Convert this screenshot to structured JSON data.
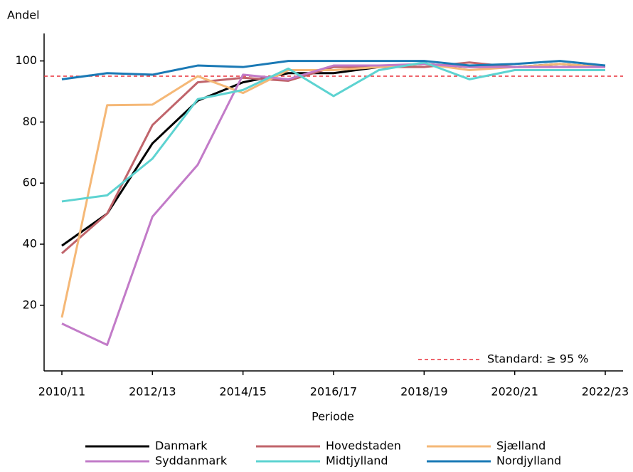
{
  "chart_data": {
    "type": "line",
    "y_label": "Andel",
    "x_label": "Periode",
    "categories": [
      "2010/11",
      null,
      "2012/13",
      null,
      "2014/15",
      null,
      "2016/17",
      null,
      "2018/19",
      null,
      "2020/21",
      null,
      "2022/23"
    ],
    "series": [
      {
        "name": "Danmark",
        "color": "#000000",
        "values": [
          39.5,
          50,
          73,
          87,
          93,
          96,
          96,
          98,
          99,
          98,
          98,
          99,
          98
        ]
      },
      {
        "name": "Hovedstaden",
        "color": "#c0646b",
        "values": [
          37,
          50,
          79,
          93,
          94.5,
          93.5,
          98,
          98,
          98,
          99.5,
          98,
          98,
          98
        ]
      },
      {
        "name": "Sjælland",
        "color": "#f5b877",
        "values": [
          16,
          85.5,
          85.7,
          95,
          89.5,
          97,
          97,
          98,
          99,
          97,
          98,
          99,
          98
        ]
      },
      {
        "name": "Syddanmark",
        "color": "#c27bc8",
        "values": [
          14,
          7,
          49,
          66,
          95.5,
          94,
          98.5,
          98.5,
          99,
          98,
          98,
          98,
          98
        ]
      },
      {
        "name": "Midtjylland",
        "color": "#5dd3d1",
        "values": [
          54,
          56,
          68,
          87.5,
          90.5,
          97.5,
          88.5,
          97,
          99.5,
          94,
          97,
          97,
          97
        ]
      },
      {
        "name": "Nordjylland",
        "color": "#1a79b5",
        "values": [
          94,
          96,
          95.5,
          98.5,
          98,
          100,
          100,
          100,
          100,
          98.5,
          99,
          100,
          98.5
        ]
      }
    ],
    "reference_line": {
      "value": 95,
      "label": "Standard: ≥ 95 %",
      "color": "#e8303a"
    },
    "ylim": [
      -1.5,
      109
    ],
    "yticks": [
      20,
      40,
      60,
      80,
      100
    ]
  }
}
